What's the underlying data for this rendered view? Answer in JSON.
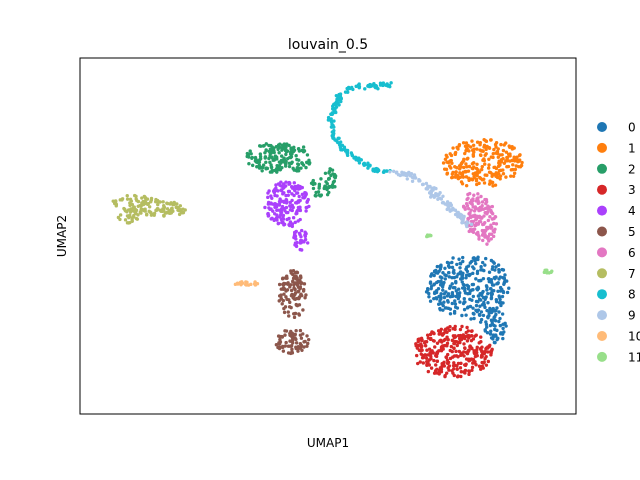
{
  "chart_data": {
    "type": "scatter",
    "title": "louvain_0.5",
    "xlabel": "UMAP1",
    "ylabel": "UMAP2",
    "xticks": false,
    "yticks": false,
    "legend_position": "right, outside plot area",
    "xlim": [
      0,
      100
    ],
    "ylim": [
      0,
      100
    ],
    "clusters": [
      {
        "name": "0",
        "color": "#1f77b4",
        "regions": [
          {
            "cx": 78.2,
            "cy": 35.6,
            "rx": 8.5,
            "ry": 9.0,
            "rot": -10,
            "n": 320
          },
          {
            "cx": 83.5,
            "cy": 25.0,
            "rx": 2.8,
            "ry": 5.0,
            "rot": 0,
            "n": 60
          }
        ]
      },
      {
        "name": "1",
        "color": "#ff7f0e",
        "regions": [
          {
            "cx": 81.2,
            "cy": 70.5,
            "rx": 8.0,
            "ry": 6.8,
            "rot": 10,
            "n": 260
          }
        ]
      },
      {
        "name": "2",
        "color": "#279e68",
        "regions": [
          {
            "cx": 40.3,
            "cy": 72.0,
            "rx": 6.8,
            "ry": 4.5,
            "rot": 0,
            "n": 170
          },
          {
            "cx": 49.2,
            "cy": 65.0,
            "rx": 2.5,
            "ry": 4.2,
            "rot": -15,
            "n": 50
          }
        ]
      },
      {
        "name": "3",
        "color": "#d62728",
        "regions": [
          {
            "cx": 75.2,
            "cy": 17.5,
            "rx": 8.0,
            "ry": 7.3,
            "rot": 0,
            "n": 300
          }
        ]
      },
      {
        "name": "4",
        "color": "#aa40fc",
        "regions": [
          {
            "cx": 41.7,
            "cy": 59.0,
            "rx": 4.5,
            "ry": 6.5,
            "rot": 0,
            "n": 180
          },
          {
            "cx": 44.5,
            "cy": 49.0,
            "rx": 1.8,
            "ry": 3.0,
            "rot": 0,
            "n": 30
          }
        ]
      },
      {
        "name": "5",
        "color": "#8c564b",
        "regions": [
          {
            "cx": 42.8,
            "cy": 33.5,
            "rx": 2.8,
            "ry": 7.0,
            "rot": 0,
            "n": 110
          },
          {
            "cx": 42.8,
            "cy": 20.5,
            "rx": 3.6,
            "ry": 3.5,
            "rot": 0,
            "n": 70
          }
        ]
      },
      {
        "name": "6",
        "color": "#e377c2",
        "regions": [
          {
            "cx": 80.6,
            "cy": 55.0,
            "rx": 3.3,
            "ry": 7.5,
            "rot": 10,
            "n": 160
          }
        ]
      },
      {
        "name": "7",
        "color": "#b5bd61",
        "regions": [
          {
            "cx": 13.8,
            "cy": 58.5,
            "rx": 7.8,
            "ry": 2.6,
            "rot": -10,
            "n": 130
          },
          {
            "cx": 9.6,
            "cy": 55.5,
            "rx": 2.2,
            "ry": 1.9,
            "rot": 0,
            "n": 25
          }
        ]
      },
      {
        "name": "8",
        "color": "#17becf",
        "regions": [
          {
            "type": "path",
            "points": [
              [
                62.4,
                92.3
              ],
              [
                55.4,
                92.0
              ],
              [
                52.6,
                90.0
              ],
              [
                50.8,
                84.0
              ],
              [
                51.2,
                78.0
              ],
              [
                53.0,
                74.5
              ],
              [
                56.4,
                70.8
              ],
              [
                59.2,
                68.6
              ],
              [
                63.0,
                67.9
              ]
            ],
            "jitter": 0.7,
            "n": 170
          }
        ]
      },
      {
        "name": "9",
        "color": "#aec7e8",
        "regions": [
          {
            "type": "path",
            "points": [
              [
                63.0,
                67.9
              ],
              [
                66.0,
                67.4
              ],
              [
                69.0,
                65.0
              ],
              [
                72.0,
                61.5
              ],
              [
                74.5,
                58.5
              ],
              [
                76.5,
                55.5
              ],
              [
                78.0,
                53.0
              ]
            ],
            "jitter": 0.9,
            "n": 110
          }
        ]
      },
      {
        "name": "10",
        "color": "#ffbb78",
        "regions": [
          {
            "cx": 33.5,
            "cy": 36.7,
            "rx": 2.4,
            "ry": 0.8,
            "rot": 0,
            "n": 20
          }
        ]
      },
      {
        "name": "11",
        "color": "#98df8a",
        "regions": [
          {
            "cx": 94.0,
            "cy": 40.0,
            "rx": 1.5,
            "ry": 0.5,
            "rot": 0,
            "n": 9
          },
          {
            "cx": 70.0,
            "cy": 50.0,
            "rx": 0.8,
            "ry": 0.4,
            "rot": 0,
            "n": 5
          }
        ]
      }
    ]
  }
}
